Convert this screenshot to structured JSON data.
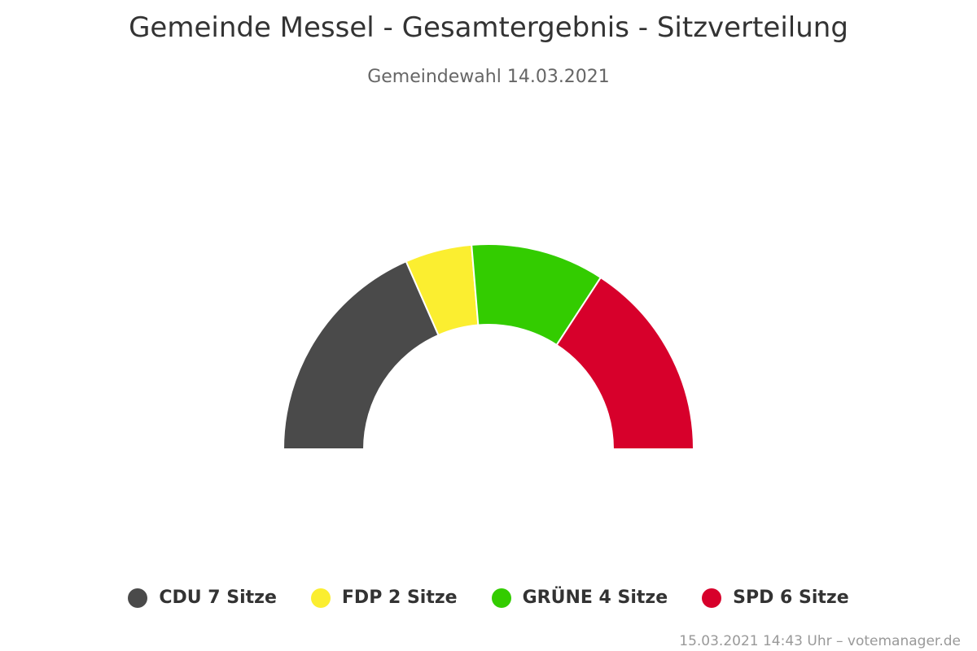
{
  "chart_data": {
    "type": "pie",
    "subtype": "semicircle-parliament",
    "title": "Gemeinde Messel - Gesamtergebnis - Sitzverteilung",
    "subtitle": "Gemeindewahl 14.03.2021",
    "categories": [
      "CDU",
      "FDP",
      "GRÜNE",
      "SPD"
    ],
    "values": [
      7,
      2,
      4,
      6
    ],
    "unit": "Sitze",
    "colors": [
      "#4a4a4a",
      "#fbee30",
      "#33cc00",
      "#d7002b"
    ],
    "legend_labels": [
      "CDU 7 Sitze",
      "FDP 2 Sitze",
      "GRÜNE 4 Sitze",
      "SPD 6 Sitze"
    ],
    "legend_position": "bottom-center"
  },
  "footer": "15.03.2021 14:43 Uhr – votemanager.de"
}
